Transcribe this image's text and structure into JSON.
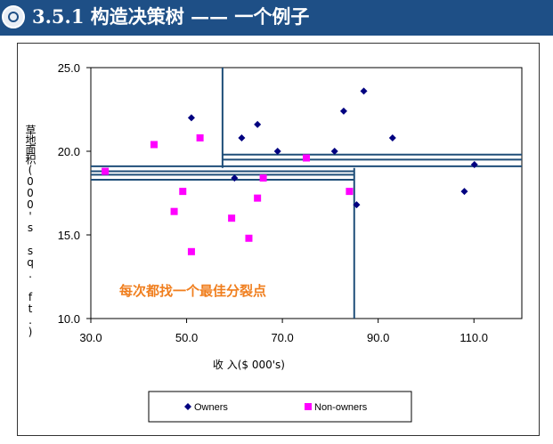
{
  "slide": {
    "title": "3.5.1 构造决策树 —— 一个例子"
  },
  "chart_data": {
    "type": "scatter",
    "xlabel": "收 入($ 000's)",
    "ylabel": "草地面积(000's sq. ft.)",
    "xlim": [
      30.0,
      120.0
    ],
    "ylim": [
      10.0,
      25.0
    ],
    "x_ticks": [
      "30.0",
      "50.0",
      "70.0",
      "90.0",
      "110.0"
    ],
    "y_ticks": [
      "10.0",
      "15.0",
      "20.0",
      "25.0"
    ],
    "grid": false,
    "legend_position": "bottom",
    "annotation": "每次都找一个最佳分裂点",
    "colors": {
      "owners": "#000080",
      "non_owners": "#ff00ff",
      "split_lines": "#1f4e79",
      "annotation": "#f07f1f"
    },
    "series": [
      {
        "name": "Owners",
        "marker": "diamond",
        "points": [
          [
            51.0,
            22.0
          ],
          [
            61.5,
            20.8
          ],
          [
            64.8,
            21.6
          ],
          [
            69.0,
            20.0
          ],
          [
            80.9,
            20.0
          ],
          [
            82.8,
            22.4
          ],
          [
            87.0,
            23.6
          ],
          [
            93.0,
            20.8
          ],
          [
            60.0,
            18.4
          ],
          [
            85.5,
            16.8
          ],
          [
            108.0,
            17.6
          ],
          [
            110.1,
            19.2
          ]
        ]
      },
      {
        "name": "Non-owners",
        "marker": "square",
        "points": [
          [
            33.0,
            18.8
          ],
          [
            43.2,
            20.4
          ],
          [
            52.8,
            20.8
          ],
          [
            49.2,
            17.6
          ],
          [
            47.4,
            16.4
          ],
          [
            51.0,
            14.0
          ],
          [
            59.4,
            16.0
          ],
          [
            63.0,
            14.8
          ],
          [
            64.8,
            17.2
          ],
          [
            66.0,
            18.4
          ],
          [
            75.0,
            19.6
          ],
          [
            84.0,
            17.6
          ]
        ]
      }
    ],
    "split_lines": [
      {
        "orientation": "vertical",
        "x": 57.5,
        "y_from": 19.0,
        "y_to": 25.0
      },
      {
        "orientation": "vertical",
        "x": 85.0,
        "y_from": 10.0,
        "y_to": 19.0
      },
      {
        "orientation": "horizontal",
        "y": 19.1,
        "x_from": 30.0,
        "x_to": 57.5
      },
      {
        "orientation": "horizontal",
        "y": 18.8,
        "x_from": 30.0,
        "x_to": 85.0
      },
      {
        "orientation": "horizontal",
        "y": 18.6,
        "x_from": 30.0,
        "x_to": 85.0
      },
      {
        "orientation": "horizontal",
        "y": 18.3,
        "x_from": 30.0,
        "x_to": 85.0
      },
      {
        "orientation": "horizontal",
        "y": 19.8,
        "x_from": 57.5,
        "x_to": 120.0
      },
      {
        "orientation": "horizontal",
        "y": 19.5,
        "x_from": 57.5,
        "x_to": 120.0
      },
      {
        "orientation": "horizontal",
        "y": 19.1,
        "x_from": 57.5,
        "x_to": 120.0
      }
    ]
  }
}
